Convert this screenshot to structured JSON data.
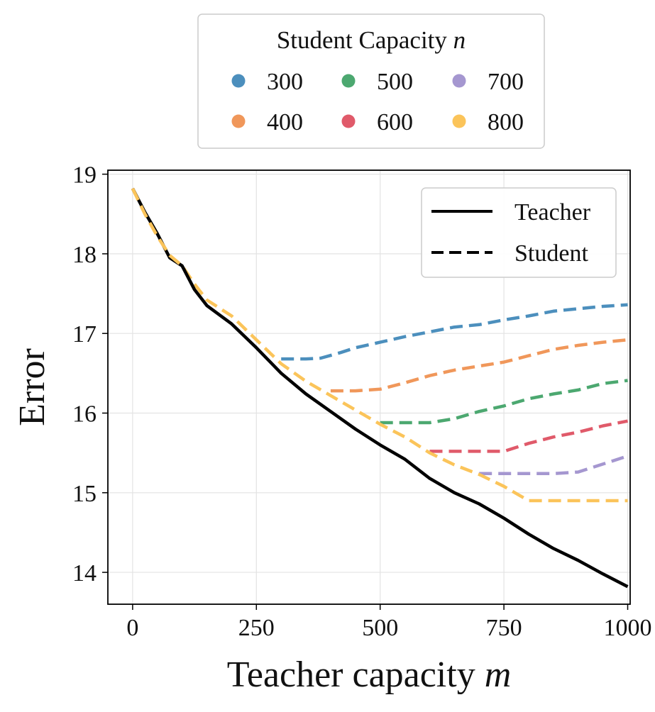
{
  "chart_data": {
    "type": "line",
    "xlabel": "Teacher capacity",
    "xlabel_var": "m",
    "ylabel": "Error",
    "xlim": [
      -50,
      1005
    ],
    "ylim": [
      13.6,
      19.05
    ],
    "xticks": [
      0,
      250,
      500,
      750,
      1000
    ],
    "yticks": [
      14,
      15,
      16,
      17,
      18,
      19
    ],
    "grid": true,
    "style_legend": {
      "placement": "top-right",
      "entries": [
        {
          "label": "Teacher",
          "style": "solid"
        },
        {
          "label": "Student",
          "style": "dashed"
        }
      ]
    },
    "color_legend": {
      "placement": "above plot",
      "title": "Student Capacity",
      "title_var": "n",
      "entries": [
        {
          "label": "300",
          "color": "#4c8fbd"
        },
        {
          "label": "400",
          "color": "#f0975a"
        },
        {
          "label": "500",
          "color": "#4ca870"
        },
        {
          "label": "600",
          "color": "#e05a6a"
        },
        {
          "label": "700",
          "color": "#a597d0"
        },
        {
          "label": "800",
          "color": "#fbc45a"
        }
      ]
    },
    "teacher": {
      "name": "Teacher",
      "color": "#000000",
      "x": [
        0,
        25,
        50,
        75,
        100,
        125,
        150,
        200,
        250,
        300,
        350,
        400,
        450,
        500,
        550,
        600,
        650,
        700,
        750,
        800,
        850,
        900,
        950,
        1000
      ],
      "y": [
        18.82,
        18.52,
        18.25,
        17.95,
        17.85,
        17.55,
        17.35,
        17.12,
        16.82,
        16.5,
        16.24,
        16.02,
        15.8,
        15.6,
        15.42,
        15.18,
        15.0,
        14.86,
        14.68,
        14.48,
        14.3,
        14.15,
        13.98,
        13.82
      ]
    },
    "students": [
      {
        "name": "300",
        "color": "#4c8fbd",
        "x": [
          300,
          350,
          380,
          420,
          450,
          500,
          550,
          600,
          650,
          700,
          750,
          800,
          850,
          900,
          950,
          1000
        ],
        "y": [
          16.68,
          16.68,
          16.69,
          16.76,
          16.82,
          16.89,
          16.96,
          17.02,
          17.08,
          17.11,
          17.17,
          17.22,
          17.28,
          17.31,
          17.34,
          17.36
        ]
      },
      {
        "name": "400",
        "color": "#f0975a",
        "x": [
          400,
          450,
          500,
          550,
          600,
          650,
          700,
          750,
          800,
          850,
          900,
          950,
          1000
        ],
        "y": [
          16.28,
          16.28,
          16.3,
          16.38,
          16.47,
          16.54,
          16.59,
          16.64,
          16.72,
          16.8,
          16.85,
          16.89,
          16.92
        ]
      },
      {
        "name": "500",
        "color": "#4ca870",
        "x": [
          500,
          550,
          600,
          650,
          700,
          750,
          800,
          850,
          900,
          950,
          1000
        ],
        "y": [
          15.88,
          15.88,
          15.88,
          15.93,
          16.02,
          16.09,
          16.18,
          16.24,
          16.29,
          16.37,
          16.41
        ]
      },
      {
        "name": "600",
        "color": "#e05a6a",
        "x": [
          600,
          650,
          700,
          750,
          800,
          850,
          900,
          950,
          1000
        ],
        "y": [
          15.52,
          15.52,
          15.52,
          15.52,
          15.62,
          15.7,
          15.76,
          15.84,
          15.9
        ]
      },
      {
        "name": "700",
        "color": "#a597d0",
        "x": [
          700,
          750,
          800,
          850,
          900,
          950,
          1000
        ],
        "y": [
          15.24,
          15.24,
          15.24,
          15.24,
          15.26,
          15.36,
          15.46
        ]
      },
      {
        "name": "800",
        "color": "#fbc45a",
        "x": [
          0,
          25,
          50,
          75,
          100,
          125,
          150,
          200,
          250,
          300,
          350,
          400,
          450,
          500,
          550,
          600,
          650,
          700,
          750,
          800,
          850,
          900,
          950,
          1000
        ],
        "y": [
          18.82,
          18.5,
          18.22,
          17.98,
          17.85,
          17.62,
          17.42,
          17.22,
          16.92,
          16.62,
          16.4,
          16.22,
          16.04,
          15.86,
          15.7,
          15.5,
          15.35,
          15.23,
          15.08,
          14.9,
          14.9,
          14.9,
          14.9,
          14.9
        ]
      }
    ]
  }
}
